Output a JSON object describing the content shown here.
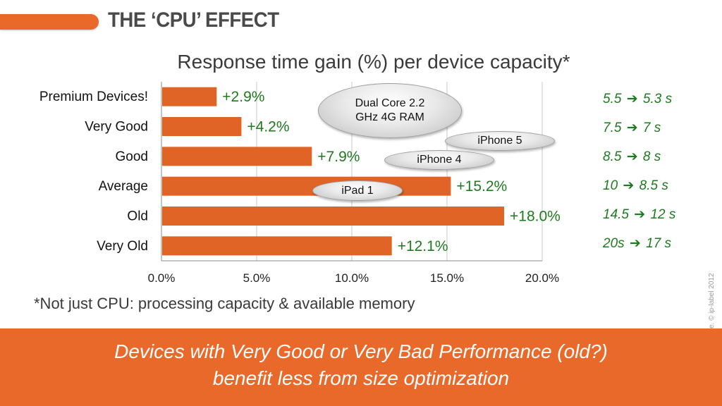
{
  "slide_title": "THE ‘CPU’ EFFECT",
  "colors": {
    "accent": "#e8692a",
    "bar": "#e06426",
    "label_green": "#1f7a1f",
    "text": "#3a3a3a",
    "grid": "#c8c8c8"
  },
  "chart_data": {
    "type": "bar",
    "orientation": "horizontal",
    "title": "Response time gain (%) per device capacity*",
    "categories": [
      "Premium Devices!",
      "Very Good",
      "Good",
      "Average",
      "Old",
      "Very Old"
    ],
    "values": [
      2.9,
      4.2,
      7.9,
      15.2,
      18.0,
      12.1
    ],
    "data_labels": [
      "+2.9%",
      "+4.2%",
      "+7.9%",
      "+15.2%",
      "+18.0%",
      "+12.1%"
    ],
    "xlim": [
      0,
      20
    ],
    "x_ticks": [
      0,
      5,
      10,
      15,
      20
    ],
    "x_tick_labels": [
      "0.0%",
      "5.0%",
      "10.0%",
      "15.0%",
      "20.0%"
    ],
    "grid": true,
    "annotations": [
      {
        "lines": [
          "Dual Core 2.2",
          "GHz  4G RAM"
        ]
      },
      {
        "lines": [
          "iPhone 5"
        ]
      },
      {
        "lines": [
          "iPhone 4"
        ]
      },
      {
        "lines": [
          "iPad 1"
        ]
      }
    ]
  },
  "timings": [
    {
      "from": "5.5",
      "to": "5.3 s"
    },
    {
      "from": "7.5",
      "to": "7 s"
    },
    {
      "from": "8.5",
      "to": "8 s"
    },
    {
      "from": "10",
      "to": "8.5 s"
    },
    {
      "from": "14.5",
      "to": "12 s"
    },
    {
      "from": "20s",
      "to": "17 s"
    }
  ],
  "arrow": "➔",
  "footnote": "*Not just CPU: processing capacity & available memory",
  "banner": {
    "line1": "Devices with Very Good or Very Bad Performance (old?)",
    "line2": "benefit less from size optimization"
  },
  "copyright": "e. © ip-label 2012"
}
